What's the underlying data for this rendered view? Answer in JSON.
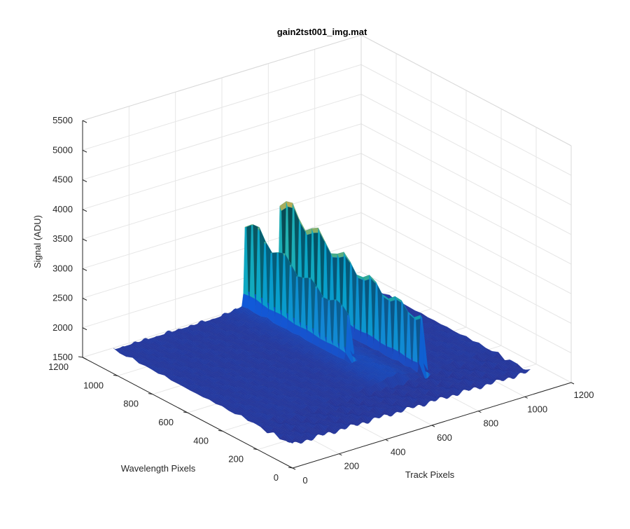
{
  "chart_data": {
    "type": "surface",
    "title": "gain2tst001_img.mat",
    "xlabel": "Track Pixels",
    "ylabel": "Wavelength Pixels",
    "zlabel": "Signal (ADU)",
    "xlim": [
      0,
      1200
    ],
    "ylim": [
      0,
      1200
    ],
    "zlim": [
      1500,
      5500
    ],
    "x_ticks": [
      "0",
      "200",
      "400",
      "600",
      "800",
      "1000",
      "1200"
    ],
    "y_ticks": [
      "0",
      "200",
      "400",
      "600",
      "800",
      "1000",
      "1200"
    ],
    "z_ticks": [
      "1500",
      "2000",
      "2500",
      "3000",
      "3500",
      "4000",
      "4500",
      "5000",
      "5500"
    ],
    "grid": true,
    "colormap": [
      "#352a87",
      "#0f5cdd",
      "#1481d6",
      "#06a4ca",
      "#2eb7a4",
      "#87bf77",
      "#d1bb59",
      "#fec832",
      "#f9fb0e"
    ],
    "surface_extent": {
      "x": [
        0,
        1024
      ],
      "y": [
        0,
        1024
      ]
    },
    "baseline_signal": 1900,
    "peaks": [
      {
        "x": 570,
        "y_range": [
          420,
          1024
        ],
        "signal": 3850
      },
      {
        "x": 720,
        "y_range": [
          200,
          1024
        ],
        "signal": 4150
      }
    ]
  }
}
